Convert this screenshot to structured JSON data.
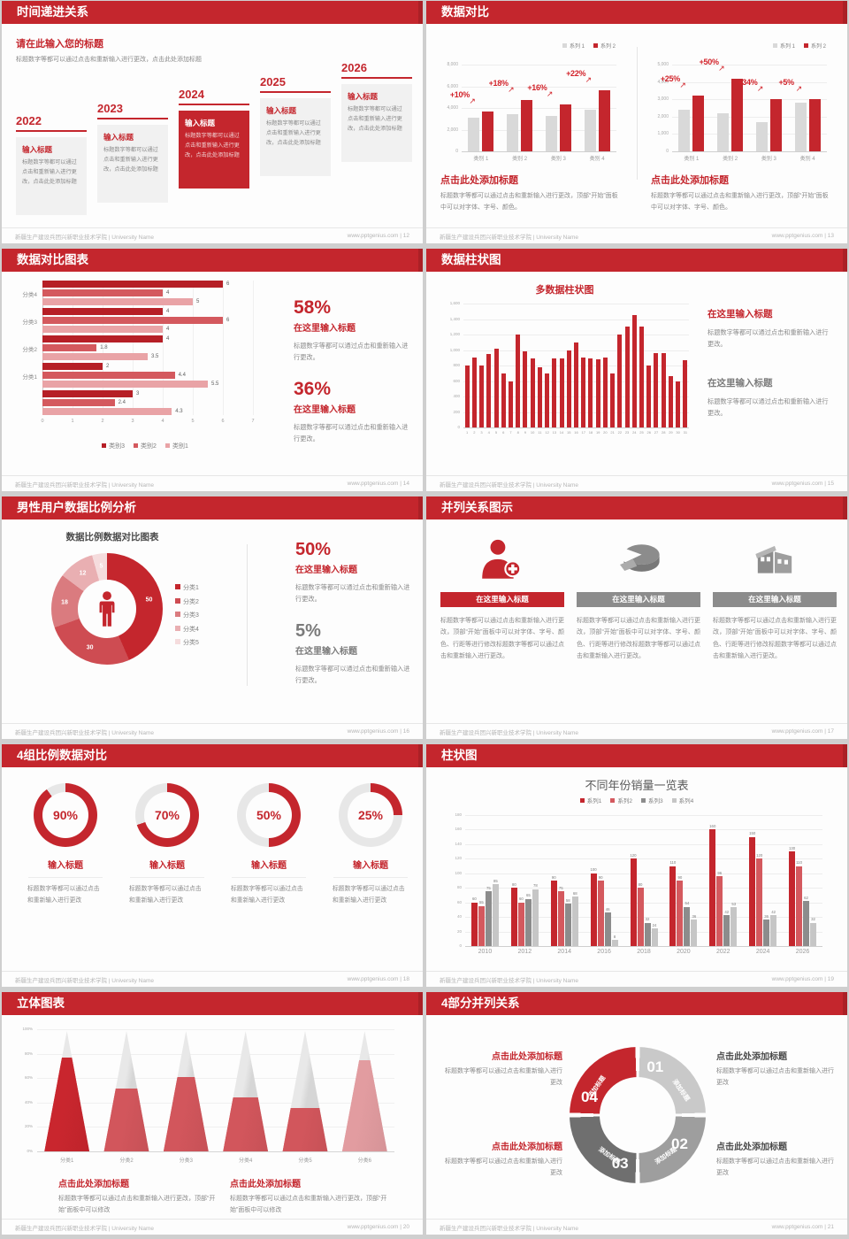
{
  "footer": {
    "school": "新疆生产建设兵团兴新职业技术学院 | University Name",
    "site": "www.pptgenius.com"
  },
  "slides": {
    "s12": {
      "page": "12",
      "title": "时间递进关系",
      "intro_title": "请在此输入您的标题",
      "intro_body": "标题数字等都可以通过点击和重新输入进行更改，点击此处添加标题",
      "item_title": "输入标题",
      "item_body": "标题数字等都可以通过点击和重新输入进行更改，点击此处添加标题",
      "years": [
        "2022",
        "2023",
        "2024",
        "2025",
        "2026"
      ],
      "highlight_index": 2
    },
    "s13": {
      "page": "13",
      "title": "数据对比",
      "caption_title": "点击此处添加标题",
      "caption_body": "标题数字等都可以通过点击和重新输入进行更改，顶部“开始”面板中可以对字体、字号、颜色。"
    },
    "s14": {
      "page": "14",
      "title": "数据对比图表",
      "stats": [
        {
          "pct": "58%",
          "title": "在这里输入标题",
          "body": "标题数字等都可以通过点击和重新输入进行更改。"
        },
        {
          "pct": "36%",
          "title": "在这里输入标题",
          "body": "标题数字等都可以通过点击和重新输入进行更改。"
        }
      ]
    },
    "s15": {
      "page": "15",
      "title": "数据柱状图",
      "stats": [
        {
          "title": "在这里输入标题",
          "body": "标题数字等都可以通过点击和重新输入进行更改。"
        },
        {
          "title": "在这里输入标题",
          "body": "标题数字等都可以通过点击和重新输入进行更改。"
        }
      ]
    },
    "s16": {
      "page": "16",
      "title": "男性用户数据比例分析",
      "stats": [
        {
          "pct": "50%",
          "title": "在这里输入标题",
          "body": "标题数字等都可以通过点击和重新输入进行更改。"
        },
        {
          "pct": "5%",
          "title": "在这里输入标题",
          "body": "标题数字等都可以通过点击和重新输入进行更改。"
        }
      ]
    },
    "s17": {
      "page": "17",
      "title": "并列关系图示",
      "col_title": "在这里输入标题",
      "col_body": "标题数字等都可以通过点击和重新输入进行更改，顶部“开始”面板中可以对字体、字号、颜色、行距等进行修改标题数字等都可以通过点击和重新输入进行更改。",
      "icons": [
        "nurse-icon",
        "pie-icon",
        "factory-icon"
      ],
      "banner_colors": [
        "#C4262D",
        "#8C8C8C",
        "#8C8C8C"
      ]
    },
    "s18": {
      "page": "18",
      "title": "4组比例数据对比",
      "item_title": "输入标题",
      "item_body": "标题数字等都可以通过点击和重新输入进行更改"
    },
    "s19": {
      "page": "19",
      "title": "柱状图"
    },
    "s20": {
      "page": "20",
      "title": "立体图表",
      "captions": [
        {
          "title": "点击此处添加标题",
          "body": "标题数字等都可以通过点击和重新输入进行更改，顶部“开始”面板中可以修改"
        },
        {
          "title": "点击此处添加标题",
          "body": "标题数字等都可以通过点击和重新输入进行更改，顶部“开始”面板中可以修改"
        }
      ]
    },
    "s21": {
      "page": "21",
      "title": "4部分并列关系",
      "segments": [
        {
          "num": "01",
          "label": "添加标题",
          "color": "#C9C9C9"
        },
        {
          "num": "02",
          "label": "添加标题",
          "color": "#9E9E9E"
        },
        {
          "num": "03",
          "label": "添加标题",
          "color": "#6F6F6F"
        },
        {
          "num": "04",
          "label": "添加标题",
          "color": "#C4262D"
        }
      ],
      "blocks": [
        {
          "title": "点击此处添加标题",
          "body": "标题数字等都可以通过点击和重新输入进行更改"
        },
        {
          "title": "点击此处添加标题",
          "body": "标题数字等都可以通过点击和重新输入进行更改"
        },
        {
          "title": "点击此处添加标题",
          "body": "标题数字等都可以通过点击和重新输入进行更改"
        },
        {
          "title": "点击此处添加标题",
          "body": "标题数字等都可以通过点击和重新输入进行更改"
        }
      ]
    }
  },
  "chart_data": [
    {
      "id": "s13-left",
      "type": "bar",
      "categories": [
        "类别 1",
        "类别 2",
        "类别 3",
        "类别 4"
      ],
      "series": [
        {
          "name": "系列 1",
          "color": "#D9D9D9",
          "values": [
            3100,
            3400,
            3300,
            3800
          ]
        },
        {
          "name": "系列 2",
          "color": "#C4262D",
          "values": [
            3700,
            4700,
            4300,
            5600
          ]
        }
      ],
      "growth_labels": [
        "+10%",
        "+18%",
        "+16%",
        "+22%"
      ],
      "ylim": [
        0,
        8000
      ],
      "yticks": [
        "0",
        "2,000",
        "4,000",
        "6,000",
        "8,000"
      ],
      "legend_position": "top-right"
    },
    {
      "id": "s13-right",
      "type": "bar",
      "categories": [
        "类别 1",
        "类别 2",
        "类别 3",
        "类别 4"
      ],
      "series": [
        {
          "name": "系列 1",
          "color": "#D9D9D9",
          "values": [
            2400,
            2200,
            1700,
            2800
          ]
        },
        {
          "name": "系列 2",
          "color": "#C4262D",
          "values": [
            3200,
            4200,
            3000,
            3000
          ]
        }
      ],
      "growth_labels": [
        "+25%",
        "+50%",
        "+34%",
        "+5%"
      ],
      "ylim": [
        0,
        5000
      ],
      "yticks": [
        "0",
        "1,000",
        "2,000",
        "3,000",
        "4,000",
        "5,000"
      ],
      "legend_position": "top-right"
    },
    {
      "id": "s14",
      "type": "bar-horizontal",
      "groups": [
        "分类4",
        "分类3",
        "分类2",
        "分类1",
        ""
      ],
      "series": [
        {
          "name": "类别3",
          "color": "#B61F26"
        },
        {
          "name": "类别2",
          "color": "#D4595E"
        },
        {
          "name": "类别1",
          "color": "#E9A3A6"
        }
      ],
      "values": [
        [
          6,
          4,
          5
        ],
        [
          4,
          6,
          4
        ],
        [
          4,
          1.8,
          3.5
        ],
        [
          2,
          4.4,
          5.5
        ],
        [
          3,
          2.4,
          4.3
        ]
      ],
      "xlim": [
        0,
        7
      ],
      "xticks": [
        0,
        1,
        2,
        3,
        4,
        5,
        6,
        7
      ],
      "value_labels": true,
      "legend_position": "bottom"
    },
    {
      "id": "s15",
      "type": "bar",
      "title": "多数据柱状图",
      "categories": [
        "1",
        "2",
        "3",
        "4",
        "5",
        "6",
        "7",
        "8",
        "9",
        "10",
        "11",
        "12",
        "13",
        "14",
        "15",
        "16",
        "17",
        "18",
        "19",
        "20",
        "21",
        "22",
        "23",
        "24",
        "25",
        "26",
        "27",
        "28",
        "29",
        "30",
        "31"
      ],
      "values": [
        800,
        900,
        800,
        950,
        1020,
        700,
        600,
        1200,
        980,
        890,
        780,
        700,
        890,
        890,
        990,
        1100,
        900,
        890,
        880,
        900,
        700,
        1200,
        1300,
        1450,
        1300,
        800,
        960,
        960,
        660,
        590,
        870
      ],
      "color": "#C4262D",
      "ylim": [
        0,
        1600
      ],
      "yticks": [
        "0",
        "200",
        "400",
        "600",
        "800",
        "1,000",
        "1,200",
        "1,400",
        "1,600"
      ]
    },
    {
      "id": "s16",
      "type": "pie",
      "title": "数据比例数据对比图表",
      "labels": [
        "分类1",
        "分类2",
        "分类3",
        "分类4",
        "分类5"
      ],
      "values": [
        50,
        30,
        18,
        12,
        5
      ],
      "colors": [
        "#C4262D",
        "#CE4C52",
        "#DA7B7F",
        "#E9AFB2",
        "#F5DCDD"
      ],
      "legend_position": "right"
    },
    {
      "id": "s18",
      "type": "donut-gauges",
      "values": [
        90,
        70,
        50,
        25
      ],
      "color": "#C4262D",
      "track": "#E7E7E7"
    },
    {
      "id": "s19",
      "type": "bar",
      "title": "不同年份销量一览表",
      "categories": [
        "2010",
        "2012",
        "2014",
        "2016",
        "2018",
        "2020",
        "2022",
        "2024",
        "2026"
      ],
      "series": [
        {
          "name": "系列1",
          "color": "#C4262D",
          "values": [
            60,
            80,
            90,
            100,
            120,
            110,
            160,
            150,
            130
          ]
        },
        {
          "name": "系列2",
          "color": "#D4595E",
          "values": [
            55,
            60,
            75,
            90,
            80,
            90,
            96,
            120,
            110
          ]
        },
        {
          "name": "系列3",
          "color": "#8C8C8C",
          "values": [
            75,
            65,
            58,
            46,
            32,
            54,
            42,
            36,
            62
          ]
        },
        {
          "name": "系列4",
          "color": "#C6C6C6",
          "values": [
            85,
            78,
            68,
            8,
            24,
            36,
            53,
            42,
            32
          ]
        }
      ],
      "ylim": [
        0,
        180
      ],
      "yticks": [
        "0",
        "20",
        "40",
        "60",
        "80",
        "100",
        "120",
        "140",
        "160",
        "180"
      ],
      "value_labels": true,
      "legend_position": "top-center"
    },
    {
      "id": "s20",
      "type": "cone",
      "categories": [
        "分类1",
        "分类2",
        "分类3",
        "分类4",
        "分类5",
        "分类6"
      ],
      "fill_percent": [
        78,
        52,
        62,
        45,
        36,
        76
      ],
      "fill_colors": [
        "#C9262E",
        "#D2565C",
        "#D2565C",
        "#D2565C",
        "#D2565C",
        "#E29CA0"
      ],
      "yticks": [
        "0%",
        "20%",
        "40%",
        "60%",
        "80%",
        "100%"
      ]
    }
  ]
}
